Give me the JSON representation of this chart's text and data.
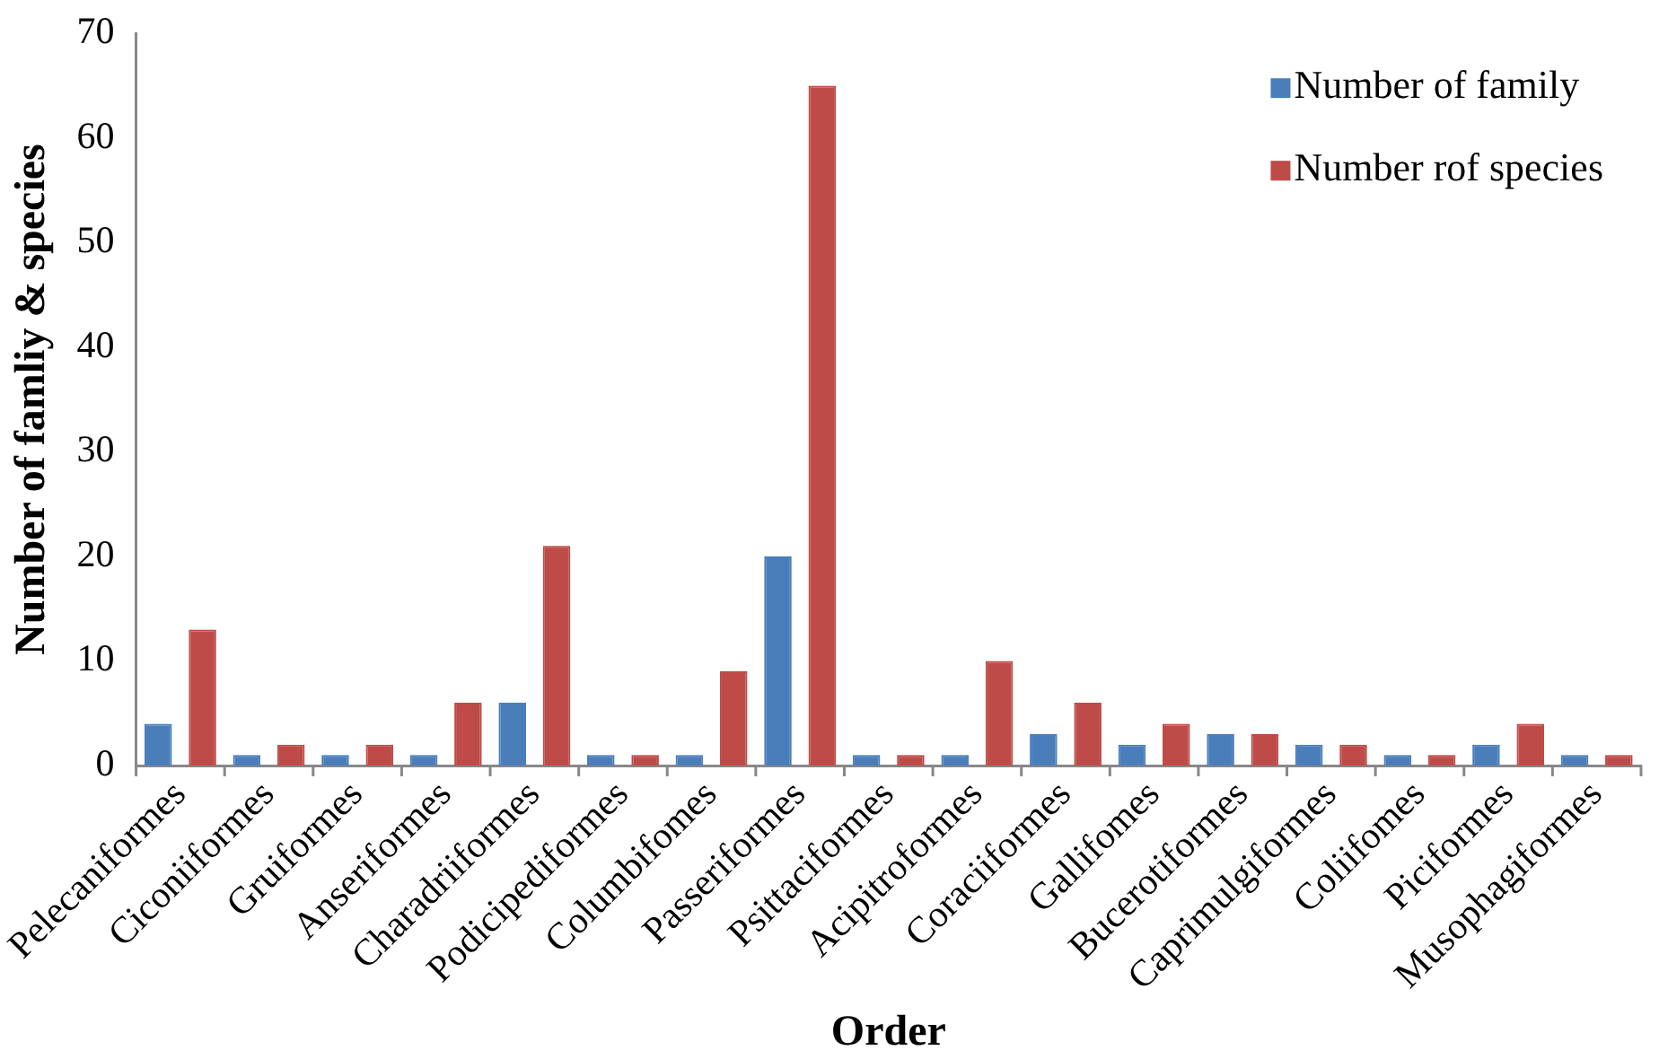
{
  "chart_data": {
    "type": "bar",
    "xlabel": "Order",
    "ylabel": "Number of famliy & species",
    "categories": [
      "Pelecaniformes",
      "Ciconiiformes",
      "Gruiformes",
      "Anseriformes",
      "Charadriiformes",
      "Podicipediformes",
      "Columbifomes",
      "Passeriformes",
      "Psittaciformes",
      "Acipitroformes",
      "Coraciiformes",
      "Gallifomes",
      "Bucerotiformes",
      "Caprimulgiformes",
      "Coliifomes",
      "Piciformes",
      "Musophagiformes"
    ],
    "series": [
      {
        "name": "Number of family",
        "color": "#4a7ebb",
        "values": [
          4,
          1,
          1,
          1,
          6,
          1,
          1,
          20,
          1,
          1,
          3,
          2,
          3,
          2,
          1,
          2,
          1
        ]
      },
      {
        "name": "Number rof species",
        "color": "#be4b48",
        "values": [
          13,
          2,
          2,
          6,
          21,
          1,
          9,
          65,
          1,
          10,
          6,
          4,
          3,
          2,
          1,
          4,
          1
        ]
      }
    ],
    "ylim": [
      0,
      70
    ],
    "yticks": [
      0,
      10,
      20,
      30,
      40,
      50,
      60,
      70
    ],
    "grid": false,
    "legend": "top right"
  }
}
